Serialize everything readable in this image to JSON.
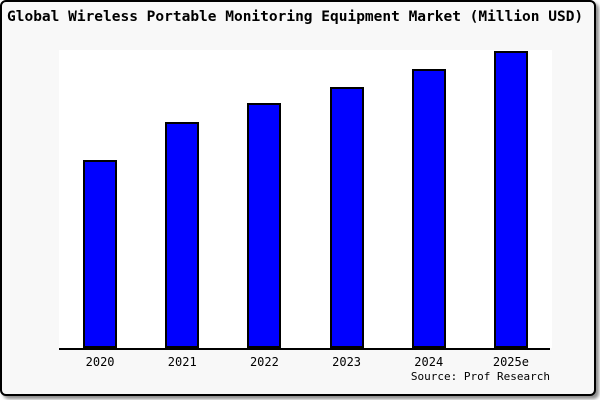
{
  "window": {
    "title": "Global Wireless Portable Monitoring Equipment Market (Million USD)"
  },
  "chart_data": {
    "type": "bar",
    "title": "Global Wireless Portable Monitoring Equipment Market (Million USD)",
    "categories": [
      "2020",
      "2021",
      "2022",
      "2023",
      "2024",
      "2025e"
    ],
    "values": [
      188,
      226,
      245,
      261,
      279,
      297
    ],
    "value_note": "relative bar heights in px; chart displays no y-axis ticks or data labels",
    "xlabel": "",
    "ylabel": "",
    "ylim": [
      0,
      298
    ],
    "grid": false,
    "legend": false,
    "bar_color": "#0000FF",
    "bar_border_color": "#000000"
  },
  "source": {
    "label": "Source: Prof Research"
  },
  "colors": {
    "card_background": "#F8F8F8",
    "plot_background": "#FFFFFF",
    "bar": "#0000FF",
    "border": "#000000",
    "text": "#000000"
  }
}
